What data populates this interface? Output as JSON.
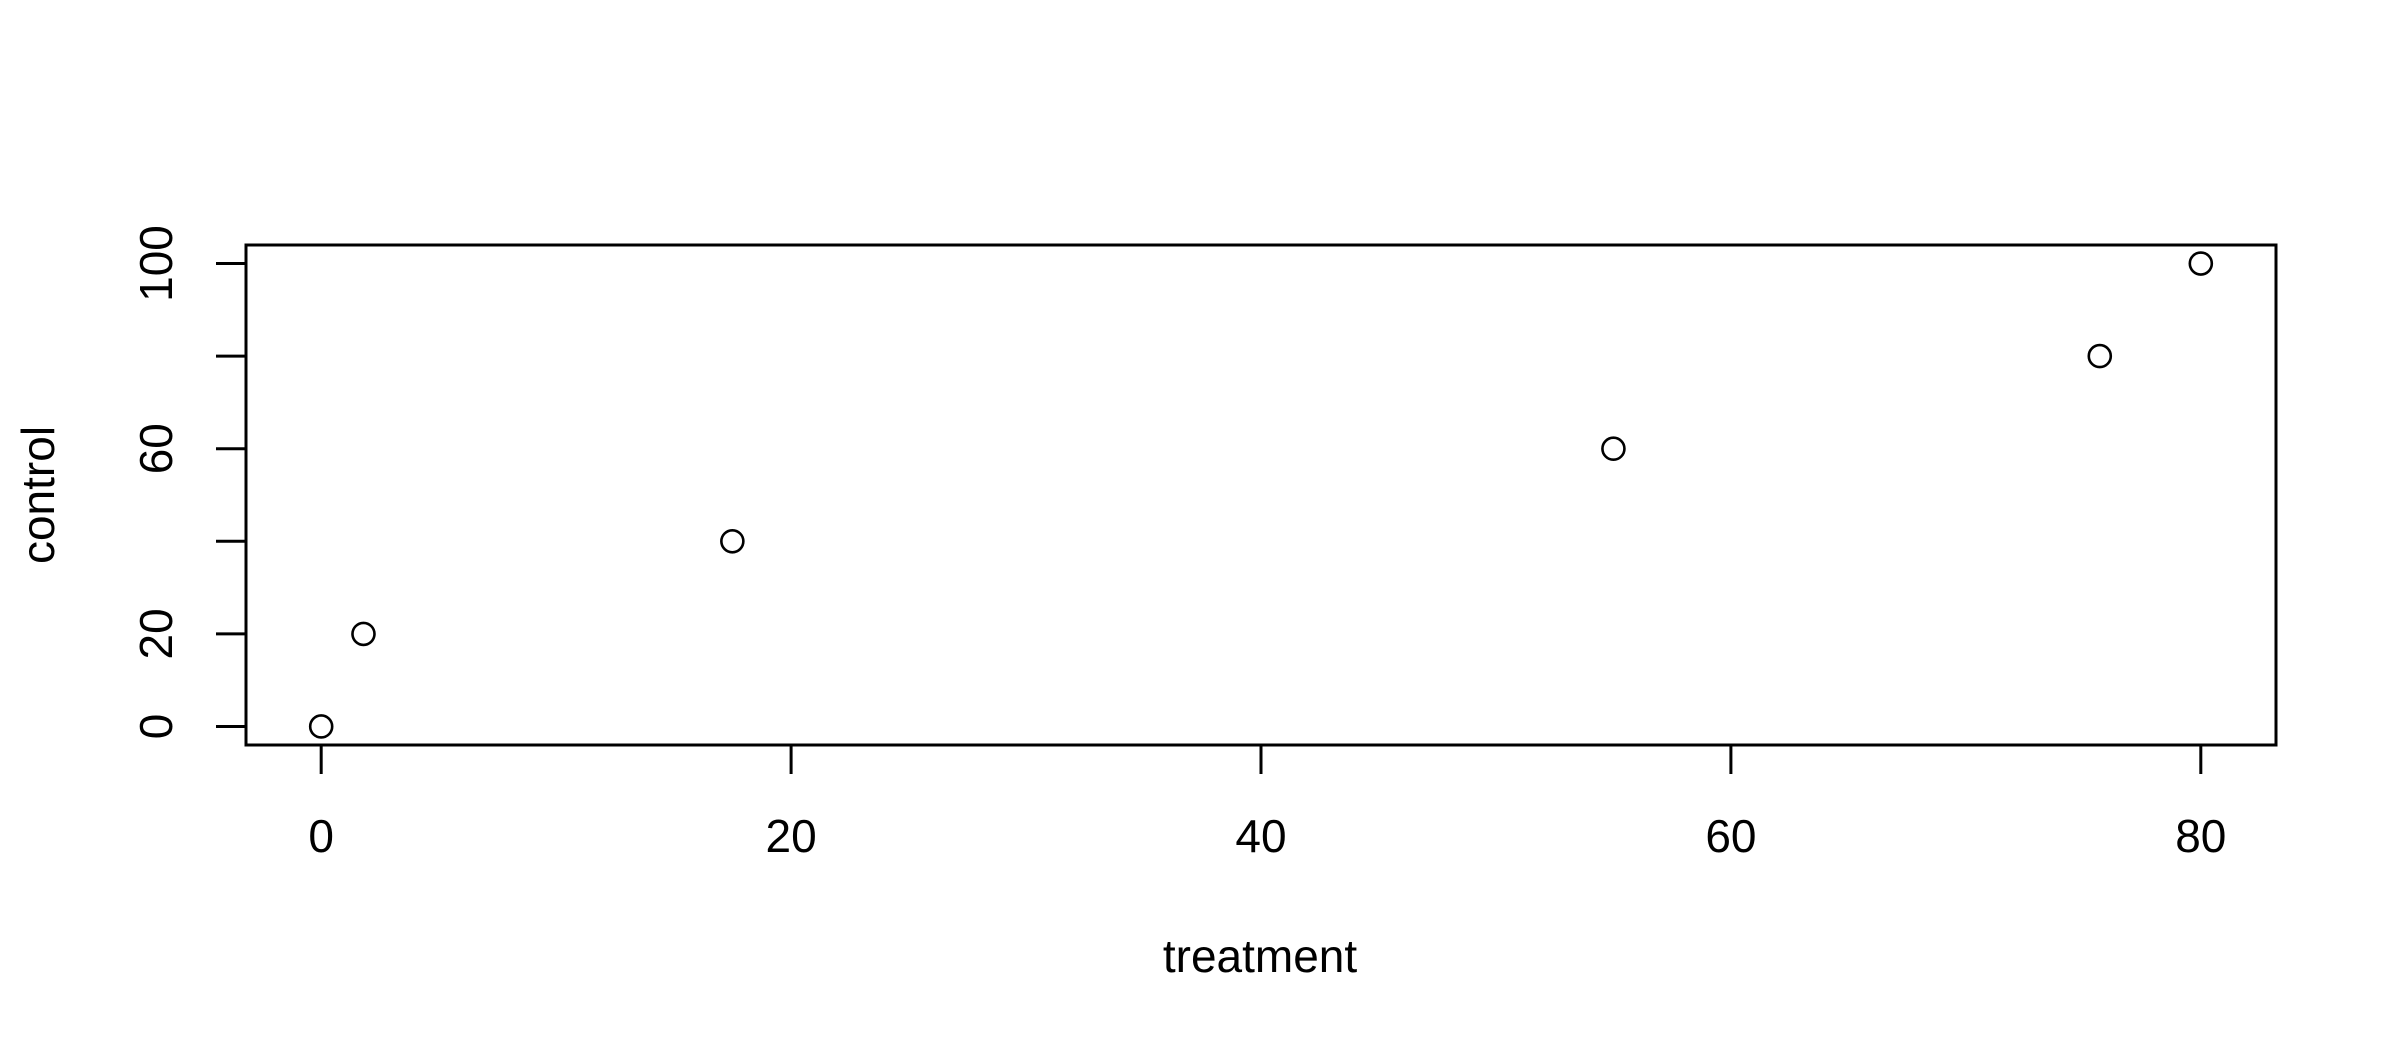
{
  "chart_data": {
    "type": "scatter",
    "xlabel": "treatment",
    "ylabel": "control",
    "x": [
      0,
      1.8,
      17.5,
      55,
      75.7,
      80
    ],
    "y": [
      0,
      20,
      40,
      60,
      80,
      100
    ],
    "xlim": [
      -3.2,
      83.2
    ],
    "ylim": [
      -4,
      104
    ],
    "xticks": [
      0,
      20,
      40,
      60,
      80
    ],
    "xtick_labels": [
      "0",
      "20",
      "40",
      "60",
      "80"
    ],
    "yticks": [
      0,
      20,
      40,
      60,
      80,
      100
    ],
    "ytick_labels": [
      "0",
      "20",
      "",
      "60",
      "",
      "100"
    ],
    "grid": false,
    "marker": "open-circle",
    "colors": {
      "points": "#000000",
      "axes": "#000000",
      "background": "#ffffff"
    }
  }
}
